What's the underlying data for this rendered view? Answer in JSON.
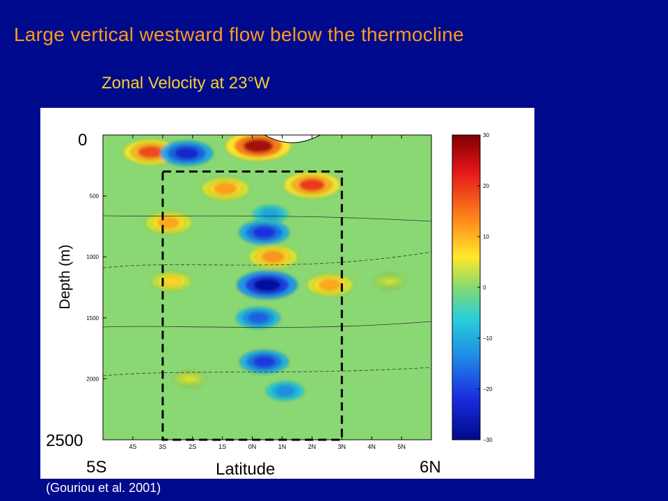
{
  "slide": {
    "title": "Large vertical westward flow below the thermocline",
    "subtitle": "Zonal Velocity at 23°W",
    "citation": "(Gouriou et al. 2001)"
  },
  "colors": {
    "background": "#000a8c",
    "title": "#ff9b1a",
    "subtitle": "#f6d02a",
    "box": "#000000"
  },
  "chart_data": {
    "type": "heatmap",
    "variable": "Zonal velocity",
    "overlay_labels": {
      "ylabel": "Depth (m)",
      "xlabel": "Latitude",
      "y_top": "0",
      "y_bottom": "2500",
      "x_left": "5S",
      "x_right": "6N"
    },
    "x_range": [
      -5,
      6
    ],
    "y_range": [
      0,
      2500
    ],
    "x_ticks": [
      {
        "value": -4,
        "label": "4S"
      },
      {
        "value": -3,
        "label": "3S"
      },
      {
        "value": -2,
        "label": "2S"
      },
      {
        "value": -1,
        "label": "1S"
      },
      {
        "value": 0,
        "label": "0N"
      },
      {
        "value": 1,
        "label": "1N"
      },
      {
        "value": 2,
        "label": "2N"
      },
      {
        "value": 3,
        "label": "3N"
      },
      {
        "value": 4,
        "label": "4N"
      },
      {
        "value": 5,
        "label": "5N"
      }
    ],
    "y_ticks": [
      500,
      1000,
      1500,
      2000
    ],
    "colorbar": {
      "range": [
        -30,
        30
      ],
      "ticks": [
        30,
        20,
        10,
        0,
        -10,
        -20,
        -30
      ],
      "tick_labels": [
        "30",
        "20",
        "10",
        "0",
        "−10",
        "−20",
        "−30"
      ]
    },
    "highlight_box": {
      "lat_min": -3,
      "lat_max": 3,
      "depth_min": 300,
      "depth_max": 2500
    },
    "features": [
      {
        "lat": 0.2,
        "depth": 90,
        "value": 32
      },
      {
        "lat": -3.4,
        "depth": 140,
        "value": 24
      },
      {
        "lat": -2.2,
        "depth": 150,
        "value": -22
      },
      {
        "lat": 2.0,
        "depth": 410,
        "value": 25
      },
      {
        "lat": -0.9,
        "depth": 440,
        "value": 18
      },
      {
        "lat": -2.8,
        "depth": 720,
        "value": 17
      },
      {
        "lat": 0.4,
        "depth": 800,
        "value": -20
      },
      {
        "lat": 0.7,
        "depth": 1000,
        "value": 19
      },
      {
        "lat": 0.5,
        "depth": 1230,
        "value": -28
      },
      {
        "lat": 2.6,
        "depth": 1230,
        "value": 17
      },
      {
        "lat": -2.7,
        "depth": 1200,
        "value": 12
      },
      {
        "lat": 0.2,
        "depth": 1500,
        "value": -15
      },
      {
        "lat": 0.4,
        "depth": 1860,
        "value": -19
      },
      {
        "lat": 1.1,
        "depth": 2100,
        "value": -10
      },
      {
        "lat": -2.1,
        "depth": 2000,
        "value": 6
      },
      {
        "lat": 4.6,
        "depth": 1200,
        "value": 5
      },
      {
        "lat": 0.6,
        "depth": 650,
        "value": -8
      }
    ],
    "ylim": [
      0,
      2500
    ],
    "grid": false
  }
}
